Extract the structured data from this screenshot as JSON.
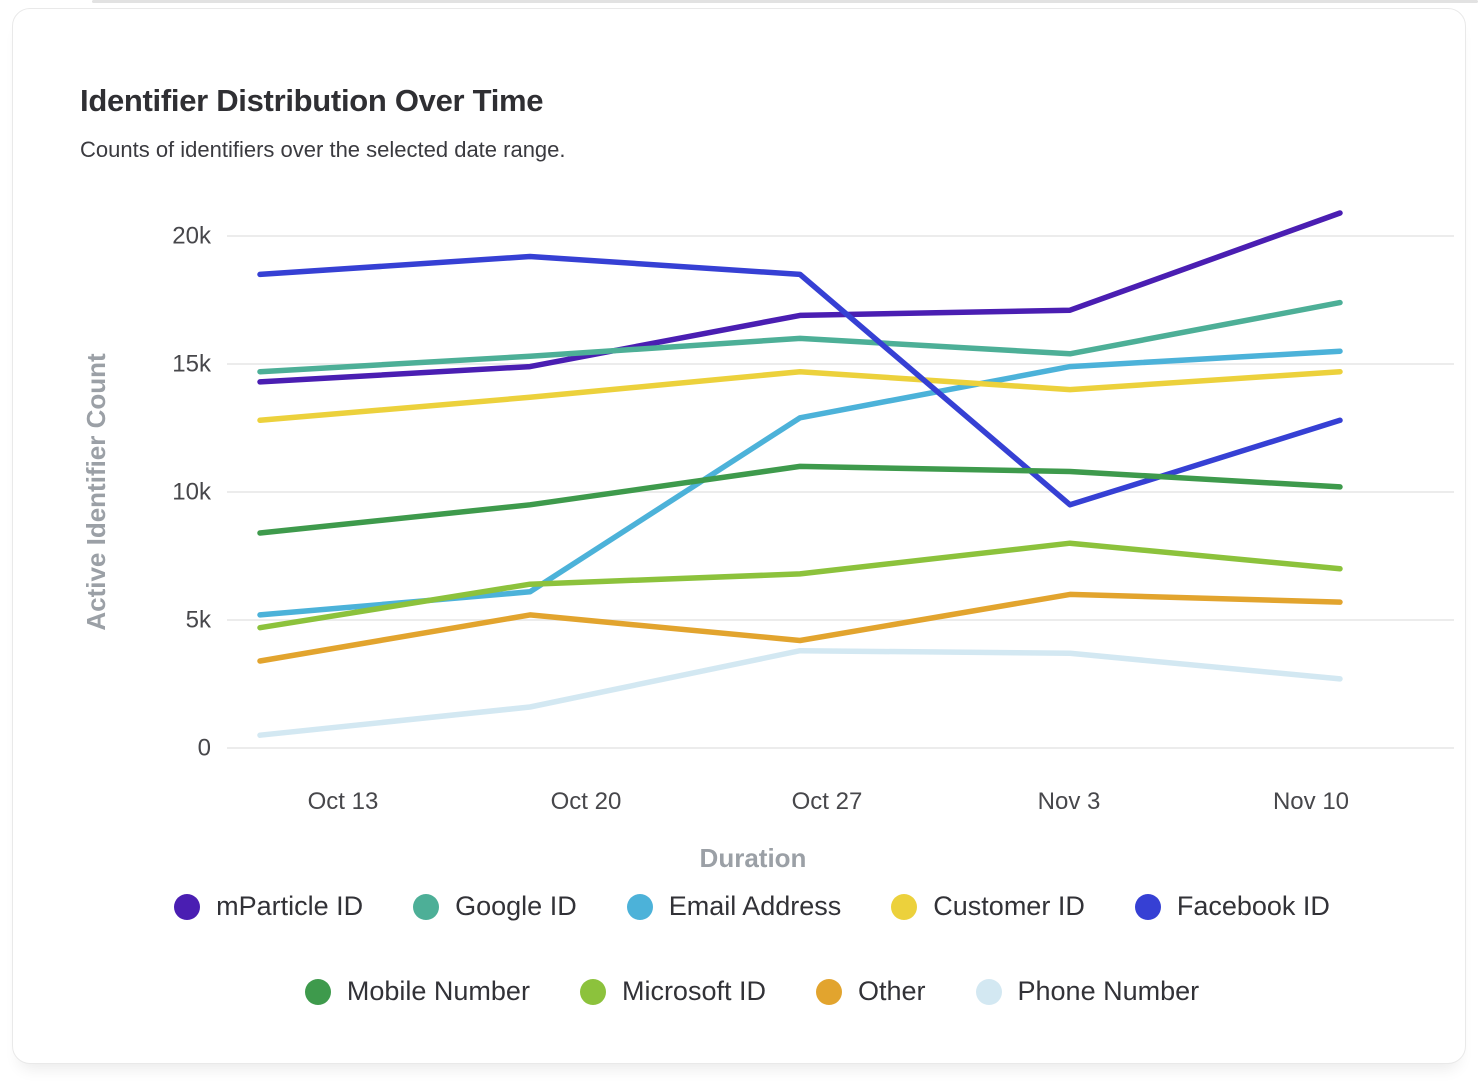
{
  "header": {
    "title": "Identifier Distribution Over Time",
    "subtitle": "Counts of identifiers over the selected date range."
  },
  "chart_data": {
    "type": "line",
    "title": "Identifier Distribution Over Time",
    "subtitle": "Counts of identifiers over the selected date range.",
    "xlabel": "Duration",
    "ylabel": "Active Identifier Count",
    "categories": [
      "Oct 13",
      "Oct 20",
      "Oct 27",
      "Nov 3",
      "Nov 10"
    ],
    "y_ticks": [
      "0",
      "5k",
      "10k",
      "15k",
      "20k"
    ],
    "ylim": [
      0,
      20000
    ],
    "grid": "horizontal",
    "legend_position": "bottom",
    "grid_color": "#ececec",
    "axis_title_color": "#9ba0a6",
    "tick_label_color": "#47474b",
    "series": [
      {
        "name": "mParticle ID",
        "color": "#4a1eb2",
        "values": [
          14300,
          14900,
          16900,
          17100,
          20900
        ]
      },
      {
        "name": "Google ID",
        "color": "#4daf97",
        "values": [
          14700,
          15300,
          16000,
          15400,
          17400
        ]
      },
      {
        "name": "Email Address",
        "color": "#4cb2d9",
        "values": [
          5200,
          6100,
          12900,
          14900,
          15500
        ]
      },
      {
        "name": "Customer ID",
        "color": "#ecd13c",
        "values": [
          12800,
          13700,
          14700,
          14000,
          14700
        ]
      },
      {
        "name": "Facebook ID",
        "color": "#3640d4",
        "values": [
          18500,
          19200,
          18500,
          9500,
          12800
        ]
      },
      {
        "name": "Mobile Number",
        "color": "#3e9a4c",
        "values": [
          8400,
          9500,
          11000,
          10800,
          10200
        ]
      },
      {
        "name": "Microsoft ID",
        "color": "#8cc23c",
        "values": [
          4700,
          6400,
          6800,
          8000,
          7000
        ]
      },
      {
        "name": "Other",
        "color": "#e2a42e",
        "values": [
          3400,
          5200,
          4200,
          6000,
          5700
        ]
      },
      {
        "name": "Phone Number",
        "color": "#d3e8f2",
        "values": [
          500,
          1600,
          3800,
          3700,
          2700
        ]
      }
    ]
  }
}
